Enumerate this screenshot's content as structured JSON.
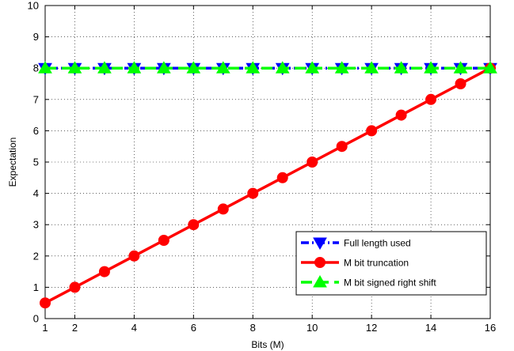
{
  "chart_data": {
    "type": "line",
    "title": "",
    "xlabel": "Bits (M)",
    "ylabel": "Expectation",
    "xlim": [
      1,
      16
    ],
    "ylim": [
      0,
      10
    ],
    "xticks": [
      2,
      4,
      6,
      8,
      10,
      12,
      14,
      16
    ],
    "yticks": [
      0,
      1,
      2,
      3,
      4,
      5,
      6,
      7,
      8,
      9,
      10
    ],
    "grid": true,
    "legend_position": "lower-right",
    "x": [
      1,
      2,
      3,
      4,
      5,
      6,
      7,
      8,
      9,
      10,
      11,
      12,
      13,
      14,
      15,
      16
    ],
    "series": [
      {
        "name": "Full length used",
        "color": "#0000ff",
        "line_style": "dash-dot",
        "marker": "triangle-down",
        "values": [
          8,
          8,
          8,
          8,
          8,
          8,
          8,
          8,
          8,
          8,
          8,
          8,
          8,
          8,
          8,
          8
        ]
      },
      {
        "name": "M bit truncation",
        "color": "#ff0000",
        "line_style": "solid",
        "marker": "circle",
        "values": [
          0.5,
          1,
          1.5,
          2,
          2.5,
          3,
          3.5,
          4,
          4.5,
          5,
          5.5,
          6,
          6.5,
          7,
          7.5,
          8
        ]
      },
      {
        "name": "M bit signed right shift",
        "color": "#00ff00",
        "line_style": "dashed",
        "marker": "triangle-up",
        "values": [
          8,
          8,
          8,
          8,
          8,
          8,
          8,
          8,
          8,
          8,
          8,
          8,
          8,
          8,
          8,
          8
        ]
      }
    ]
  }
}
